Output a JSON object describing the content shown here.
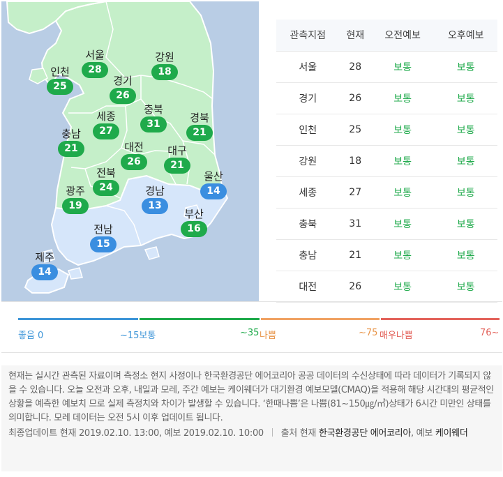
{
  "map": {
    "markers": [
      {
        "id": "seoul",
        "name": "서울",
        "value": "28",
        "grade": "normal"
      },
      {
        "id": "incheon",
        "name": "인천",
        "value": "25",
        "grade": "normal"
      },
      {
        "id": "gangwon",
        "name": "강원",
        "value": "18",
        "grade": "normal"
      },
      {
        "id": "gyeonggi",
        "name": "경기",
        "value": "26",
        "grade": "normal"
      },
      {
        "id": "sejong",
        "name": "세종",
        "value": "27",
        "grade": "normal"
      },
      {
        "id": "chungbuk",
        "name": "충북",
        "value": "31",
        "grade": "normal"
      },
      {
        "id": "gyeongbuk",
        "name": "경북",
        "value": "21",
        "grade": "normal"
      },
      {
        "id": "chungnam",
        "name": "충남",
        "value": "21",
        "grade": "normal"
      },
      {
        "id": "daejeon",
        "name": "대전",
        "value": "26",
        "grade": "normal"
      },
      {
        "id": "daegu",
        "name": "대구",
        "value": "21",
        "grade": "normal"
      },
      {
        "id": "ulsan",
        "name": "울산",
        "value": "14",
        "grade": "good"
      },
      {
        "id": "jeonbuk",
        "name": "전북",
        "value": "24",
        "grade": "normal"
      },
      {
        "id": "gwangju",
        "name": "광주",
        "value": "19",
        "grade": "normal"
      },
      {
        "id": "gyeongnam",
        "name": "경남",
        "value": "13",
        "grade": "good"
      },
      {
        "id": "busan",
        "name": "부산",
        "value": "16",
        "grade": "normal"
      },
      {
        "id": "jeonnam",
        "name": "전남",
        "value": "15",
        "grade": "good"
      },
      {
        "id": "jeju",
        "name": "제주",
        "value": "14",
        "grade": "good"
      }
    ],
    "colors": {
      "sea": "#b9cde5",
      "good_land": "#d6e6fa",
      "normal_land": "#c5efc9",
      "border": "#ffffff",
      "good_badge": "#3a8ee0",
      "normal_badge": "#1faa4b"
    }
  },
  "table": {
    "headers": [
      "관측지점",
      "현재",
      "오전예보",
      "오후예보"
    ],
    "rows": [
      [
        "서울",
        "28",
        "보통",
        "보통"
      ],
      [
        "경기",
        "26",
        "보통",
        "보통"
      ],
      [
        "인천",
        "25",
        "보통",
        "보통"
      ],
      [
        "강원",
        "18",
        "보통",
        "보통"
      ],
      [
        "세종",
        "27",
        "보통",
        "보통"
      ],
      [
        "충북",
        "31",
        "보통",
        "보통"
      ],
      [
        "충남",
        "21",
        "보통",
        "보통"
      ],
      [
        "대전",
        "26",
        "보통",
        "보통"
      ]
    ]
  },
  "legend": {
    "bars": [
      {
        "color": "#3d95d8"
      },
      {
        "color": "#1faa4b"
      },
      {
        "color": "#f0a263"
      },
      {
        "color": "#e3635b"
      }
    ],
    "labels": [
      {
        "text": "좋음 0",
        "color": "#3d95d8"
      },
      {
        "text": "~15보통",
        "color": "#3d95d8"
      },
      {
        "text": "~35",
        "color": "#1faa4b"
      },
      {
        "text": "나쁨",
        "color": "#e89549"
      },
      {
        "text": "~75",
        "color": "#e89549"
      },
      {
        "text": "매우나쁨",
        "color": "#e3635b"
      },
      {
        "text": "76~",
        "color": "#e3635b"
      }
    ]
  },
  "notice": {
    "description": "현재는 실시간 관측된 자료이며 측정소 현지 사정이나 한국환경공단 에어코리아 공공 데이터의 수신상태에 따라 데이터가 기록되지 않을 수 있습니다. 오늘 오전과 오후, 내일과 모레, 주간 예보는 케이웨더가 대기환경 예보모델(CMAQ)을 적용해 해당 시간대의 평균적인 상황을 예측한 예보치 므로 실제 측정치와 차이가 발생할 수 있습니다. ‘한때나쁨’은 나쁨(81~150㎍/㎥)상태가 6시간 미만인 상태를 의미합니다. 모레 데이터는 오전 5시 이후 업데이트 됩니다.",
    "update_text": "최종업데이트 현재 2019.02.10. 13:00, 예보 2019.02.10. 10:00",
    "source_prefix": "출처 현재",
    "source_current": "한국환경공단 에어코리아",
    "source_mid": ", 예보",
    "source_forecast": "케이웨더"
  }
}
